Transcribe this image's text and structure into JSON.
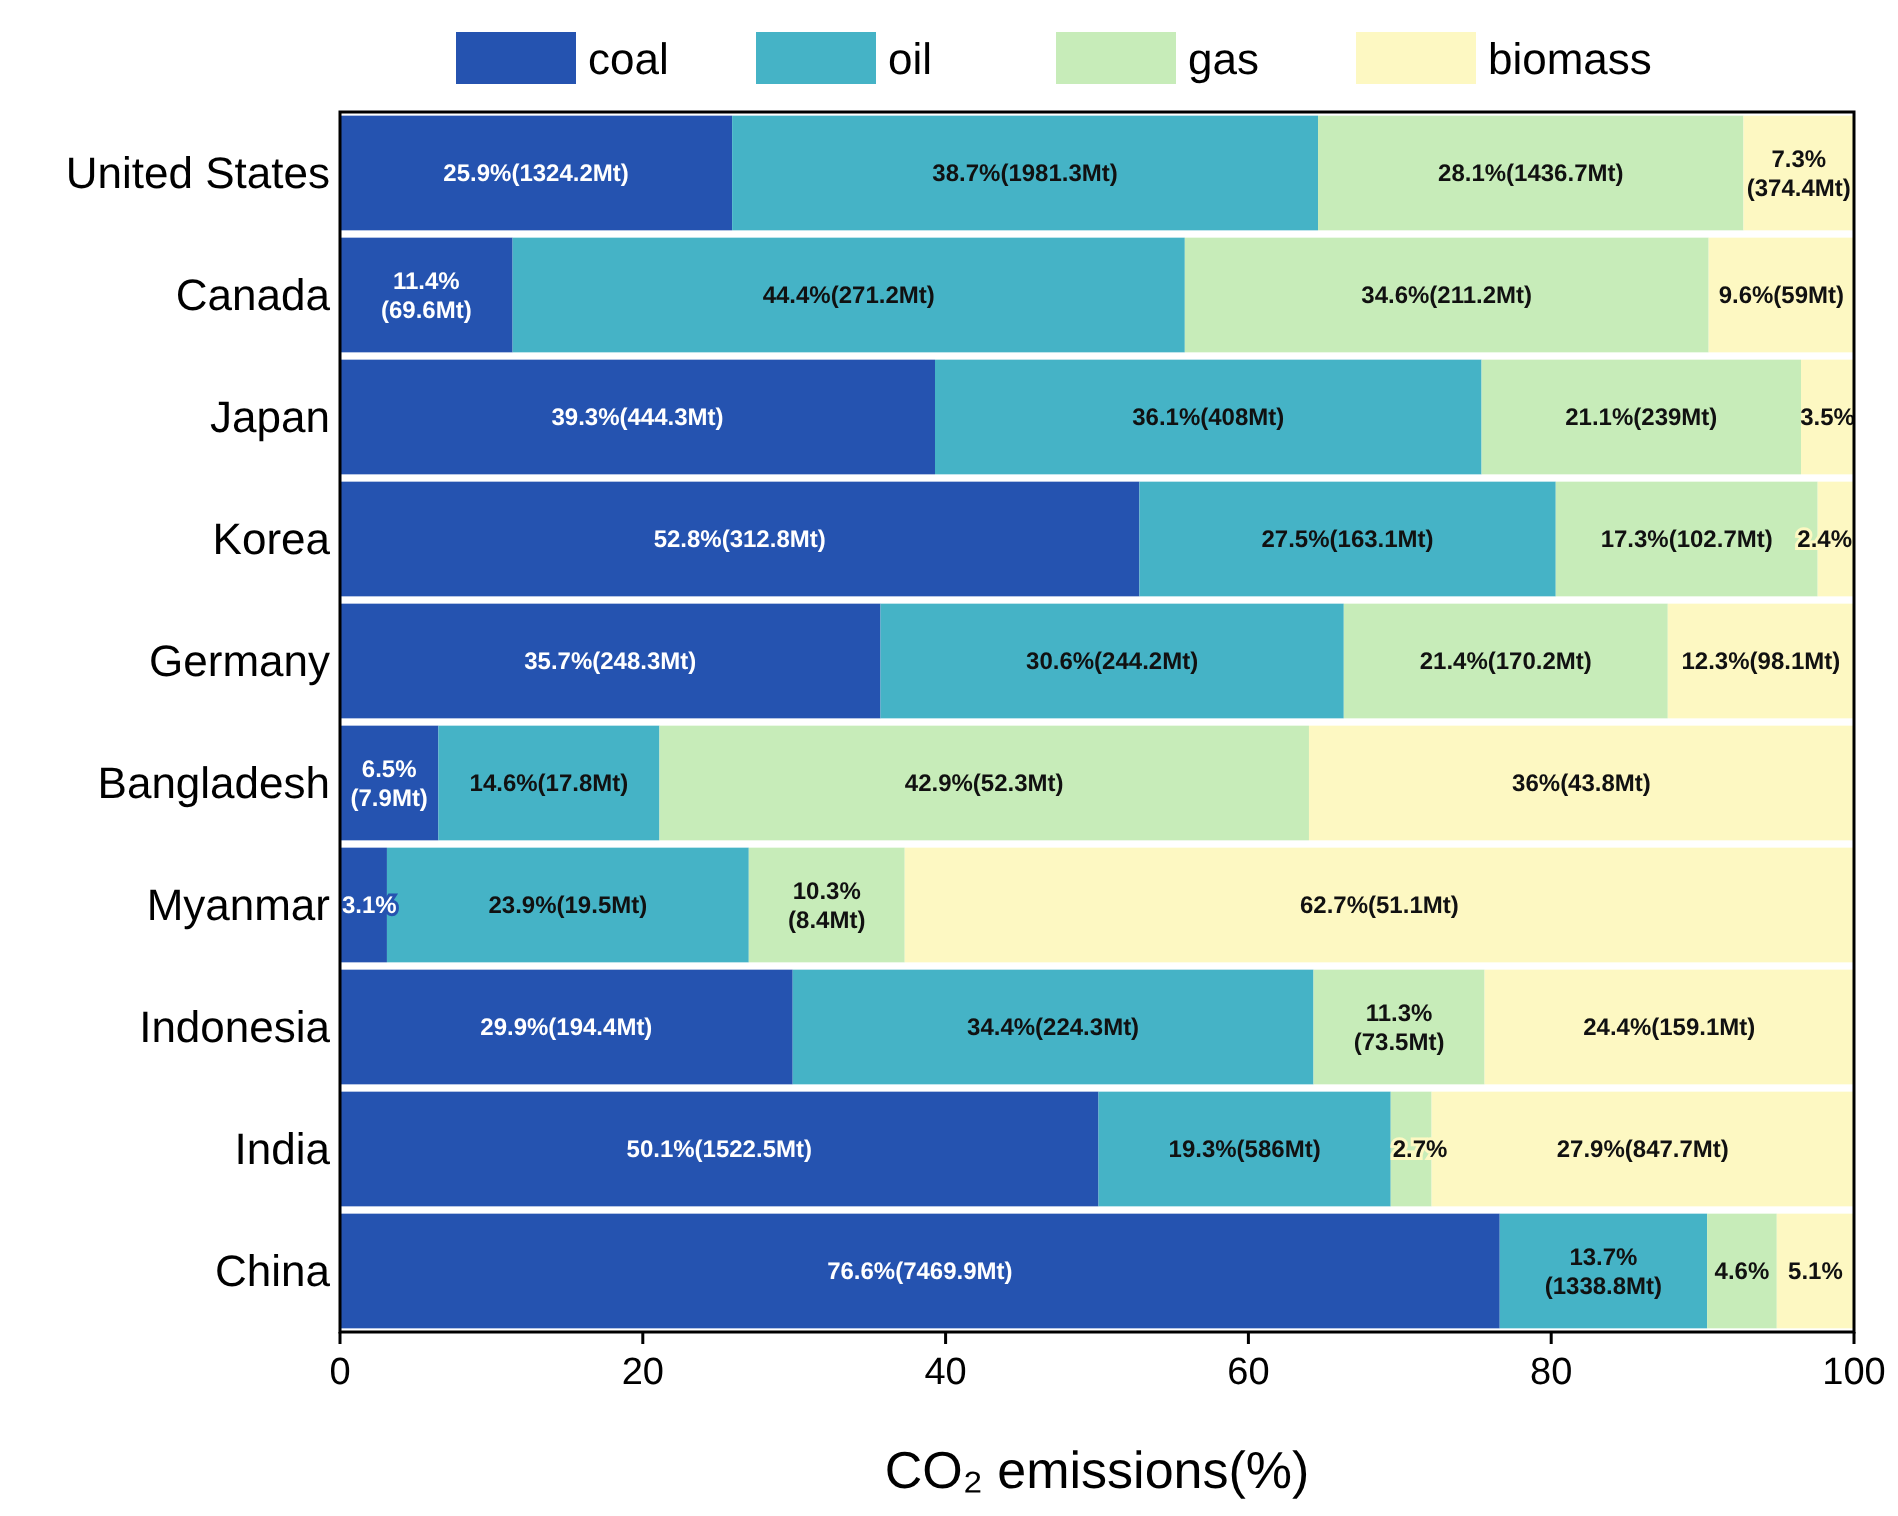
{
  "chart_data": {
    "type": "bar",
    "orientation": "horizontal",
    "stacked": true,
    "xlabel": "CO₂ emissions(%)",
    "legend": "top",
    "grid": false,
    "categories": [
      "United States",
      "Canada",
      "Japan",
      "Korea",
      "Germany",
      "Bangladesh",
      "Myanmar",
      "Indonesia",
      "India",
      "China"
    ],
    "xlim": [
      0,
      100
    ],
    "xticks": [
      0,
      20,
      40,
      60,
      80,
      100
    ],
    "series": [
      {
        "name": "coal",
        "color": "#2553b0",
        "values": [
          25.9,
          11.4,
          39.3,
          52.8,
          35.7,
          6.5,
          3.1,
          29.9,
          50.1,
          76.6
        ],
        "value_labels": [
          "25.9%(1324.2Mt)",
          "11.4%(69.6Mt)",
          "39.3%(444.3Mt)",
          "52.8%(312.8Mt)",
          "35.7%(248.3Mt)",
          "6.5%(7.9Mt)",
          "3.1%",
          "29.9%(194.4Mt)",
          "50.1%(1522.5Mt)",
          "76.6%(7469.9Mt)"
        ]
      },
      {
        "name": "oil",
        "color": "#45b3c6",
        "values": [
          38.7,
          44.4,
          36.1,
          27.5,
          30.6,
          14.6,
          23.9,
          34.4,
          19.3,
          13.7
        ],
        "value_labels": [
          "38.7%(1981.3Mt)",
          "44.4%(271.2Mt)",
          "36.1%(408Mt)",
          "27.5%(163.1Mt)",
          "30.6%(244.2Mt)",
          "14.6%(17.8Mt)",
          "23.9%(19.5Mt)",
          "34.4%(224.3Mt)",
          "19.3%(586Mt)",
          "13.7%(1338.8Mt)"
        ]
      },
      {
        "name": "gas",
        "color": "#c7ecb9",
        "values": [
          28.1,
          34.6,
          21.1,
          17.3,
          21.4,
          42.9,
          10.3,
          11.3,
          2.7,
          4.6
        ],
        "value_labels": [
          "28.1%(1436.7Mt)",
          "34.6%(211.2Mt)",
          "21.1%(239Mt)",
          "17.3%(102.7Mt)",
          "21.4%(170.2Mt)",
          "42.9%(52.3Mt)",
          "10.3%(8.4Mt)",
          "11.3%(73.5Mt)",
          "2.7%",
          "4.6%"
        ]
      },
      {
        "name": "biomass",
        "color": "#fdf8c2",
        "values": [
          7.3,
          9.6,
          3.5,
          2.4,
          12.3,
          36,
          62.7,
          24.4,
          27.9,
          5.1
        ],
        "value_labels": [
          "7.3%(374.4Mt)",
          "9.6%(59Mt)",
          "3.5%",
          "2.4%",
          "12.3%(98.1Mt)",
          "36%(43.8Mt)",
          "62.7%(51.1Mt)",
          "24.4%(159.1Mt)",
          "27.9%(847.7Mt)",
          "5.1%"
        ]
      }
    ]
  }
}
